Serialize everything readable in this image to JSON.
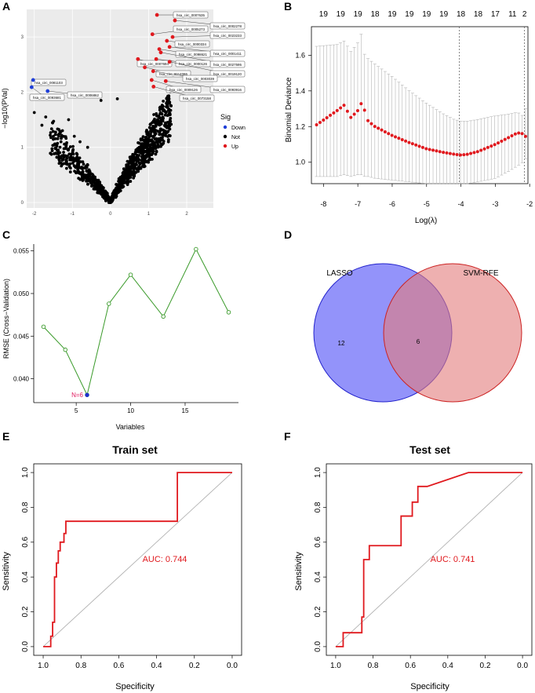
{
  "panels": [
    {
      "label": "A"
    },
    {
      "label": "B"
    },
    {
      "label": "C"
    },
    {
      "label": "D"
    },
    {
      "label": "E"
    },
    {
      "label": "F"
    }
  ],
  "chart_data": [
    {
      "type": "scatter",
      "name": "volcano",
      "title": "",
      "xlabel": "",
      "ylabel": "−log10(PVal)",
      "xlim": [
        -2.2,
        2.7
      ],
      "ylim": [
        -0.1,
        3.5
      ],
      "xticks": [
        -2,
        -1,
        0,
        1,
        2
      ],
      "yticks": [
        0,
        1,
        2,
        3
      ],
      "xtick_labels": [
        "-2",
        "-1",
        "0",
        "1",
        "2"
      ],
      "ytick_labels": [
        "0",
        "1",
        "2",
        "3"
      ],
      "legend": {
        "title": "Sig",
        "entries": [
          {
            "label": "Down",
            "color": "#1f3fd8"
          },
          {
            "label": "Not",
            "color": "#000000"
          },
          {
            "label": "Up",
            "color": "#e0191e"
          }
        ]
      },
      "down_points": [
        {
          "x": -2.03,
          "y": 2.22,
          "label": "hsa_circ_0081103"
        },
        {
          "x": -2.07,
          "y": 2.09,
          "label": "hsa_circ_0093681"
        },
        {
          "x": -1.65,
          "y": 2.02,
          "label": "hsa_circ_0006862"
        }
      ],
      "up_points": [
        {
          "x": 1.22,
          "y": 3.4,
          "label": "hsa_circ_0007635"
        },
        {
          "x": 1.69,
          "y": 3.3,
          "label": "hsa_circ_0002278"
        },
        {
          "x": 1.1,
          "y": 3.05,
          "label": "hsa_circ_0005273"
        },
        {
          "x": 1.63,
          "y": 3.0,
          "label": "hsa_circ_0023233"
        },
        {
          "x": 1.48,
          "y": 2.93,
          "label": "hsa_circ_0000334"
        },
        {
          "x": 1.55,
          "y": 2.82,
          "label": "hsa_circ_0001411"
        },
        {
          "x": 1.28,
          "y": 2.78,
          "label": "hsa_circ_0098621"
        },
        {
          "x": 1.32,
          "y": 2.72,
          "label": "hsa_circ_0027595"
        },
        {
          "x": 0.72,
          "y": 2.6,
          "label": "hsa_circ_0007694"
        },
        {
          "x": 1.2,
          "y": 2.6,
          "label": "hsa_circ_0000126"
        },
        {
          "x": 1.55,
          "y": 2.55,
          "label": "hsa_circ_0019120"
        },
        {
          "x": 0.9,
          "y": 2.45,
          "label": "hsa_circ_0014086"
        },
        {
          "x": 1.12,
          "y": 2.38,
          "label": "hsa_circ_0003039"
        },
        {
          "x": 1.08,
          "y": 2.22,
          "label": "hsa_circ_0009126"
        },
        {
          "x": 1.13,
          "y": 2.1,
          "label": "hsa_circ_0073158"
        },
        {
          "x": 1.45,
          "y": 2.2,
          "label": "hsa_circ_0093916"
        }
      ]
    },
    {
      "type": "line",
      "name": "lasso-cv",
      "title": "",
      "xlabel": "Log(λ)",
      "ylabel": "Binomial Deviance",
      "xlim": [
        -8.35,
        -2.05
      ],
      "ylim": [
        0.88,
        1.76
      ],
      "xticks": [
        -8,
        -7,
        -6,
        -5,
        -4,
        -3,
        -2
      ],
      "yticks": [
        1.0,
        1.2,
        1.4,
        1.6
      ],
      "xtick_labels": [
        "-8",
        "-7",
        "-6",
        "-5",
        "-4",
        "-3",
        "-2"
      ],
      "ytick_labels": [
        "1.0",
        "1.2",
        "1.4",
        "1.6"
      ],
      "top_axis_positions": [
        -8,
        -7.5,
        -7,
        -6.5,
        -6,
        -5.5,
        -5,
        -4.5,
        -4,
        -3.5,
        -3,
        -2.5,
        -2.15
      ],
      "top_axis_labels": [
        "19",
        "19",
        "19",
        "18",
        "19",
        "19",
        "19",
        "19",
        "18",
        "18",
        "17",
        "11",
        "2"
      ],
      "vlines": [
        -4.05,
        -2.15
      ],
      "log_lambda": [
        -8.2,
        -7.6,
        -7.4,
        -7.2,
        -7.0,
        -6.9,
        -6.8,
        -6.7,
        -6.5,
        -6.0,
        -5.5,
        -5.0,
        -4.5,
        -4.2,
        -4.0,
        -3.8,
        -3.5,
        -3.0,
        -2.6,
        -2.35,
        -2.2,
        -2.12
      ],
      "deviance": [
        1.21,
        1.29,
        1.32,
        1.25,
        1.29,
        1.33,
        1.29,
        1.23,
        1.2,
        1.15,
        1.11,
        1.075,
        1.055,
        1.045,
        1.04,
        1.045,
        1.06,
        1.1,
        1.14,
        1.165,
        1.16,
        1.145
      ],
      "upper_err": [
        1.65,
        1.66,
        1.68,
        1.62,
        1.67,
        1.72,
        1.6,
        1.58,
        1.55,
        1.48,
        1.4,
        1.33,
        1.27,
        1.24,
        1.23,
        1.23,
        1.24,
        1.26,
        1.27,
        1.28,
        1.26,
        1.3
      ],
      "lower_err": [
        0.92,
        0.92,
        0.93,
        0.92,
        0.93,
        0.93,
        0.92,
        0.92,
        0.91,
        0.9,
        0.89,
        0.88,
        0.88,
        0.88,
        0.88,
        0.88,
        0.89,
        0.91,
        0.95,
        0.98,
        1.0,
        1.02
      ]
    },
    {
      "type": "line",
      "name": "svm-rfe",
      "title": "",
      "xlabel": "Variables",
      "ylabel": "RMSE (Cross−Validation)",
      "xlim": [
        1.1,
        19.9
      ],
      "ylim": [
        0.0372,
        0.0558
      ],
      "xticks": [
        5,
        10,
        15
      ],
      "yticks": [
        0.04,
        0.045,
        0.05,
        0.055
      ],
      "xtick_labels": [
        "5",
        "10",
        "15"
      ],
      "ytick_labels": [
        "0.040",
        "0.045",
        "0.050",
        "0.055"
      ],
      "x": [
        2,
        4,
        6,
        8,
        10,
        13,
        16,
        19
      ],
      "y": [
        0.0461,
        0.0434,
        0.0381,
        0.0488,
        0.0522,
        0.0473,
        0.0552,
        0.0478
      ],
      "best": {
        "x": 6,
        "y": 0.0381,
        "label": "N=6"
      }
    },
    {
      "type": "venn",
      "name": "venn",
      "sets": [
        {
          "name": "LASSO",
          "only": "12",
          "color": "#6f6ff8"
        },
        {
          "name": "SVM-RFE",
          "only": "",
          "color": "#e27b7b"
        }
      ],
      "intersection": "6"
    },
    {
      "type": "line",
      "name": "roc-train",
      "title": "Train set",
      "xlabel": "Specificity",
      "ylabel": "Sensitivity",
      "xlim": [
        1.05,
        -0.05
      ],
      "ylim": [
        -0.05,
        1.05
      ],
      "xticks": [
        1.0,
        0.8,
        0.6,
        0.4,
        0.2,
        0.0
      ],
      "yticks": [
        0.0,
        0.2,
        0.4,
        0.6,
        0.8,
        1.0
      ],
      "xtick_labels": [
        "1.0",
        "0.8",
        "0.6",
        "0.4",
        "0.2",
        "0.0"
      ],
      "ytick_labels": [
        "0.0",
        "0.2",
        "0.4",
        "0.6",
        "0.8",
        "1.0"
      ],
      "auc_label": "AUC: 0.744",
      "specificity": [
        1.0,
        0.96,
        0.96,
        0.95,
        0.95,
        0.94,
        0.94,
        0.93,
        0.93,
        0.92,
        0.92,
        0.91,
        0.91,
        0.89,
        0.89,
        0.88,
        0.88,
        0.29,
        0.29,
        0.0
      ],
      "sensitivity": [
        0.0,
        0.0,
        0.06,
        0.06,
        0.14,
        0.14,
        0.4,
        0.4,
        0.48,
        0.48,
        0.55,
        0.55,
        0.6,
        0.6,
        0.65,
        0.65,
        0.72,
        0.72,
        1.0,
        1.0
      ]
    },
    {
      "type": "line",
      "name": "roc-test",
      "title": "Test set",
      "xlabel": "Specificity",
      "ylabel": "Sensitivity",
      "xlim": [
        1.05,
        -0.05
      ],
      "ylim": [
        -0.05,
        1.05
      ],
      "xticks": [
        1.0,
        0.8,
        0.6,
        0.4,
        0.2,
        0.0
      ],
      "yticks": [
        0.0,
        0.2,
        0.4,
        0.6,
        0.8,
        1.0
      ],
      "xtick_labels": [
        "1.0",
        "0.8",
        "0.6",
        "0.4",
        "0.2",
        "0.0"
      ],
      "ytick_labels": [
        "0.0",
        "0.2",
        "0.4",
        "0.6",
        "0.8",
        "1.0"
      ],
      "auc_label": "AUC: 0.741",
      "specificity": [
        1.0,
        0.96,
        0.96,
        0.86,
        0.86,
        0.85,
        0.85,
        0.82,
        0.82,
        0.65,
        0.65,
        0.59,
        0.59,
        0.56,
        0.56,
        0.51,
        0.29,
        0.0
      ],
      "sensitivity": [
        0.0,
        0.0,
        0.08,
        0.08,
        0.17,
        0.17,
        0.5,
        0.5,
        0.58,
        0.58,
        0.75,
        0.75,
        0.83,
        0.83,
        0.92,
        0.92,
        1.0,
        1.0
      ]
    }
  ]
}
